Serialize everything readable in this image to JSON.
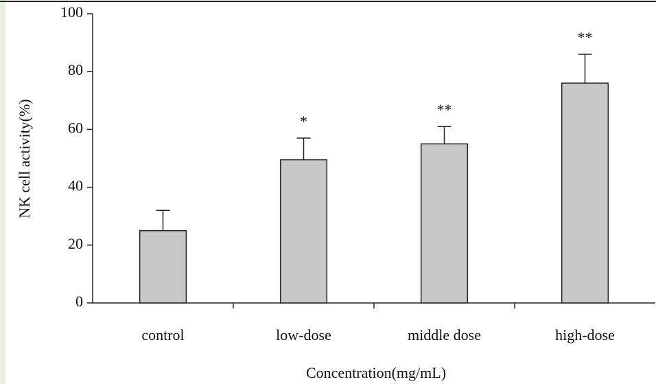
{
  "chart_data": {
    "type": "bar",
    "y_label": "NK cell activity(%)",
    "x_label": "Concentration(mg/mL)",
    "categories": [
      "control",
      "low-dose",
      "middle dose",
      "high-dose"
    ],
    "values": [
      25,
      49.5,
      55,
      76
    ],
    "errors": [
      7,
      7.5,
      6,
      10
    ],
    "significance": [
      null,
      "*",
      "**",
      "**"
    ],
    "color": "#c8c8c8",
    "ylim": [
      0,
      100
    ],
    "yticks": [
      0,
      20,
      40,
      60,
      80,
      100
    ],
    "grid": false
  }
}
